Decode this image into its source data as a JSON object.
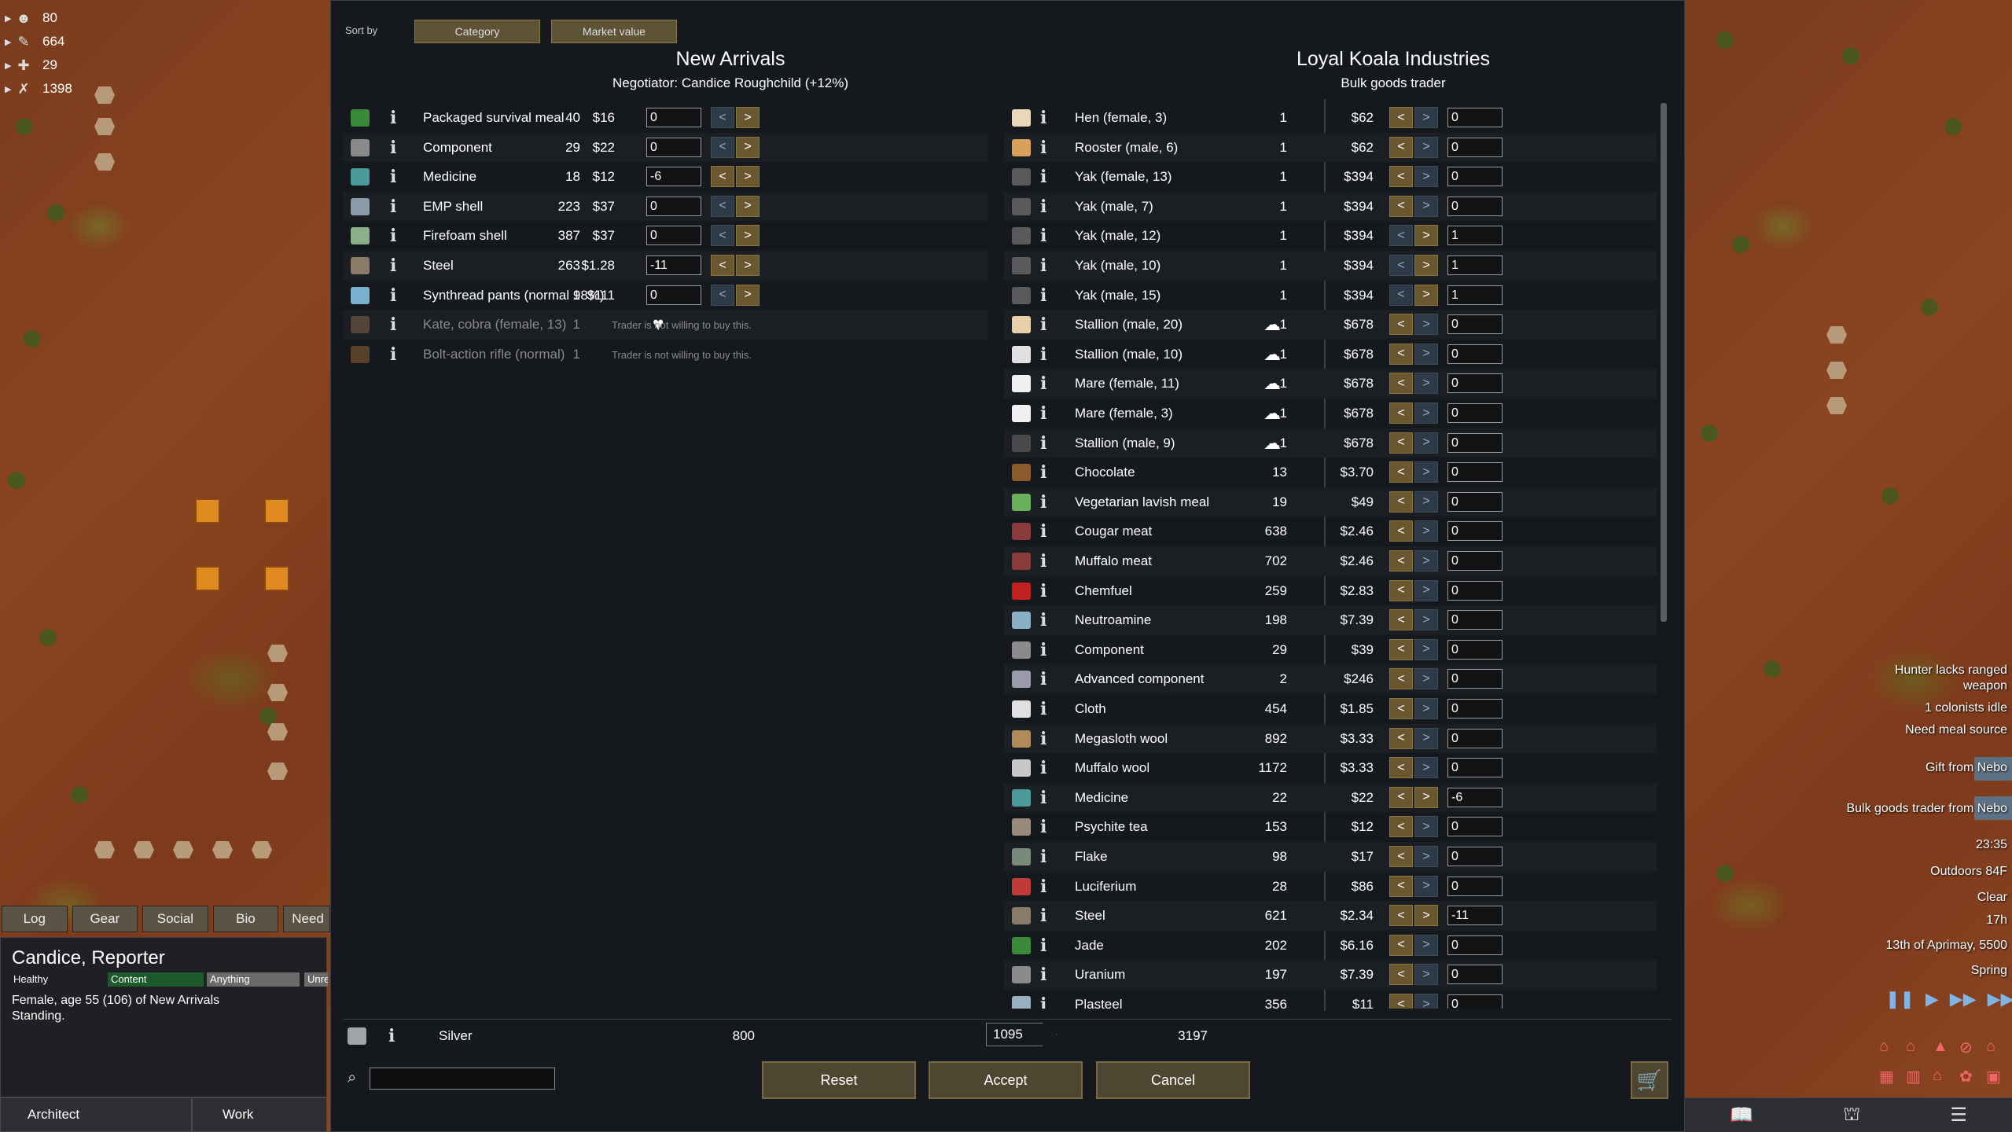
{
  "resources": [
    {
      "icon": "face-icon",
      "glyph": "☻",
      "value": "80"
    },
    {
      "icon": "knife-icon",
      "glyph": "✎",
      "value": "664"
    },
    {
      "icon": "medicine-icon",
      "glyph": "✚",
      "value": "29"
    },
    {
      "icon": "weapon-icon",
      "glyph": "✗",
      "value": "1398"
    }
  ],
  "sort": {
    "label": "Sort by",
    "category": "Category",
    "market_value": "Market value"
  },
  "colony": {
    "title": "New Arrivals",
    "negotiator": "Negotiator: Candice Roughchild (+12%)"
  },
  "trader": {
    "name": "Loyal Koala Industries",
    "kind": "Bulk goods trader"
  },
  "colony_items": [
    {
      "name": "Packaged survival meal",
      "count": "40",
      "price": "$16",
      "qty": "0",
      "icon_color": "#3a8a3a",
      "can_sell": true
    },
    {
      "name": "Component",
      "count": "29",
      "price": "$22",
      "qty": "0",
      "icon_color": "#8a8a8a",
      "can_sell": true
    },
    {
      "name": "Medicine",
      "count": "18",
      "price": "$12",
      "qty": "-6",
      "icon_color": "#4a9a9a",
      "can_sell": true
    },
    {
      "name": "EMP shell",
      "count": "223",
      "price": "$37",
      "qty": "0",
      "icon_color": "#8a9aa8",
      "can_sell": true
    },
    {
      "name": "Firefoam shell",
      "count": "387",
      "price": "$37",
      "qty": "0",
      "icon_color": "#8ab08a",
      "can_sell": true
    },
    {
      "name": "Steel",
      "count": "263",
      "price": "$1.28",
      "qty": "-11",
      "icon_color": "#8a7a68",
      "can_sell": true
    },
    {
      "name": "Synthread pants (normal 98%)",
      "count": "1",
      "price": "$111",
      "qty": "0",
      "icon_color": "#7ab0d0",
      "can_sell": true
    },
    {
      "name": "Kate, cobra (female, 13)",
      "count": "1",
      "note": "Trader is not willing to buy this.",
      "icon_color": "#8a6a4a",
      "can_sell": false,
      "bonded": true
    },
    {
      "name": "Bolt-action rifle (normal)",
      "count": "1",
      "note": "Trader is not willing to buy this.",
      "icon_color": "#9a6a3a",
      "can_sell": false
    }
  ],
  "trader_items": [
    {
      "name": "Hen (female, 3)",
      "count": "1",
      "price": "$62",
      "qty": "0",
      "icon_color": "#e8d8b8"
    },
    {
      "name": "Rooster (male, 6)",
      "count": "1",
      "price": "$62",
      "qty": "0",
      "icon_color": "#d8a058"
    },
    {
      "name": "Yak (female, 13)",
      "count": "1",
      "price": "$394",
      "qty": "0",
      "icon_color": "#5a5a5a"
    },
    {
      "name": "Yak (male, 7)",
      "count": "1",
      "price": "$394",
      "qty": "0",
      "icon_color": "#5a5a5a"
    },
    {
      "name": "Yak (male, 12)",
      "count": "1",
      "price": "$394",
      "qty": "1",
      "icon_color": "#5a5a5a"
    },
    {
      "name": "Yak (male, 10)",
      "count": "1",
      "price": "$394",
      "qty": "1",
      "icon_color": "#5a5a5a"
    },
    {
      "name": "Yak (male, 15)",
      "count": "1",
      "price": "$394",
      "qty": "1",
      "icon_color": "#5a5a5a"
    },
    {
      "name": "Stallion (male, 20)",
      "count": "1",
      "price": "$678",
      "qty": "0",
      "icon_color": "#e8d0a8",
      "pack": true
    },
    {
      "name": "Stallion (male, 10)",
      "count": "1",
      "price": "$678",
      "qty": "0",
      "icon_color": "#e0e0e0",
      "pack": true
    },
    {
      "name": "Mare (female, 11)",
      "count": "1",
      "price": "$678",
      "qty": "0",
      "icon_color": "#f0f0f0",
      "pack": true
    },
    {
      "name": "Mare (female, 3)",
      "count": "1",
      "price": "$678",
      "qty": "0",
      "icon_color": "#f0f0f0",
      "pack": true
    },
    {
      "name": "Stallion (male, 9)",
      "count": "1",
      "price": "$678",
      "qty": "0",
      "icon_color": "#4a4a4a",
      "pack": true
    },
    {
      "name": "Chocolate",
      "count": "13",
      "price": "$3.70",
      "qty": "0",
      "icon_color": "#8a5a2a"
    },
    {
      "name": "Vegetarian lavish meal",
      "count": "19",
      "price": "$49",
      "qty": "0",
      "icon_color": "#6ab05a"
    },
    {
      "name": "Cougar meat",
      "count": "638",
      "price": "$2.46",
      "qty": "0",
      "icon_color": "#8a3a3a"
    },
    {
      "name": "Muffalo meat",
      "count": "702",
      "price": "$2.46",
      "qty": "0",
      "icon_color": "#8a3a3a"
    },
    {
      "name": "Chemfuel",
      "count": "259",
      "price": "$2.83",
      "qty": "0",
      "icon_color": "#c02020"
    },
    {
      "name": "Neutroamine",
      "count": "198",
      "price": "$7.39",
      "qty": "0",
      "icon_color": "#8ab0c8"
    },
    {
      "name": "Component",
      "count": "29",
      "price": "$39",
      "qty": "0",
      "icon_color": "#8a8a8a"
    },
    {
      "name": "Advanced component",
      "count": "2",
      "price": "$246",
      "qty": "0",
      "icon_color": "#9a9aa8"
    },
    {
      "name": "Cloth",
      "count": "454",
      "price": "$1.85",
      "qty": "0",
      "icon_color": "#e0e0e0"
    },
    {
      "name": "Megasloth wool",
      "count": "892",
      "price": "$3.33",
      "qty": "0",
      "icon_color": "#b08a58"
    },
    {
      "name": "Muffalo wool",
      "count": "1172",
      "price": "$3.33",
      "qty": "0",
      "icon_color": "#c8c8c8"
    },
    {
      "name": "Medicine",
      "count": "22",
      "price": "$22",
      "qty": "-6",
      "icon_color": "#4a9a9a"
    },
    {
      "name": "Psychite tea",
      "count": "153",
      "price": "$12",
      "qty": "0",
      "icon_color": "#9a8a7a"
    },
    {
      "name": "Flake",
      "count": "98",
      "price": "$17",
      "qty": "0",
      "icon_color": "#7a8a7a"
    },
    {
      "name": "Luciferium",
      "count": "28",
      "price": "$86",
      "qty": "0",
      "icon_color": "#c03a3a"
    },
    {
      "name": "Steel",
      "count": "621",
      "price": "$2.34",
      "qty": "-11",
      "icon_color": "#8a7a68"
    },
    {
      "name": "Jade",
      "count": "202",
      "price": "$6.16",
      "qty": "0",
      "icon_color": "#3a8a3a"
    },
    {
      "name": "Uranium",
      "count": "197",
      "price": "$7.39",
      "qty": "0",
      "icon_color": "#8a8a8a"
    },
    {
      "name": "Plasteel",
      "count": "356",
      "price": "$11",
      "qty": "0",
      "icon_color": "#9ab0c0"
    }
  ],
  "silver": {
    "name": "Silver",
    "colony_count": "800",
    "transfer": "1095",
    "trader_count": "3197"
  },
  "buttons": {
    "reset": "Reset",
    "accept": "Accept",
    "cancel": "Cancel"
  },
  "inspect": {
    "tabs": [
      "Log",
      "Gear",
      "Social",
      "Bio",
      "Need"
    ],
    "name": "Candice, Reporter",
    "bars": [
      "Healthy",
      "Content",
      "Anything",
      "Unre"
    ],
    "desc": "Female, age 55 (106) of New Arrivals",
    "desc2": "Standing."
  },
  "arch_buttons": [
    "Architect",
    "Work"
  ],
  "alerts": [
    "Hunter lacks ranged",
    "weapon",
    "1 colonists idle",
    "Need meal source",
    "Gift from Nebo",
    "Bulk goods trader from Nebo"
  ],
  "time": {
    "clock": "23:35",
    "temp": "Outdoors 84F",
    "weather": "Clear",
    "hour": "17h",
    "date": "13th of Aprimay, 5500",
    "season": "Spring"
  },
  "colors": {
    "accent_button": "#5e5336",
    "arrow_active": "#6a5730",
    "panel": "#15181c"
  }
}
